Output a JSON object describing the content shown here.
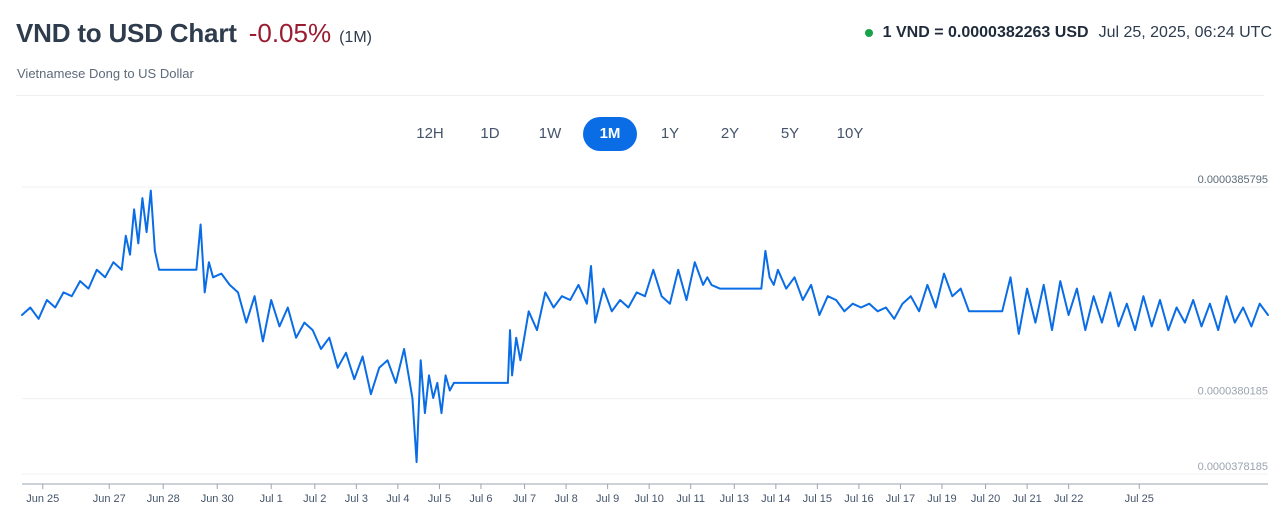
{
  "header": {
    "title": "VND to USD Chart",
    "change": "-0.05%",
    "period": "(1M)",
    "subtitle": "Vietnamese Dong to US Dollar",
    "rate": "1 VND = 0.0000382263 USD",
    "timestamp": "Jul 25, 2025, 06:24 UTC",
    "status_color": "#16a34a",
    "change_color": "#9b1c31"
  },
  "ranges": [
    {
      "label": "12H",
      "active": false
    },
    {
      "label": "1D",
      "active": false
    },
    {
      "label": "1W",
      "active": false
    },
    {
      "label": "1M",
      "active": true
    },
    {
      "label": "1Y",
      "active": false
    },
    {
      "label": "2Y",
      "active": false
    },
    {
      "label": "5Y",
      "active": false
    },
    {
      "label": "10Y",
      "active": false
    }
  ],
  "chart_data": {
    "type": "line",
    "line_color": "#0a6de6",
    "ylim": [
      3.78185e-05,
      3.85795e-05
    ],
    "yticks": [
      "0.0000385795",
      "0.0000380185",
      "0.0000378185"
    ],
    "ytick_values": [
      3.85795e-05,
      3.80185e-05,
      3.78185e-05
    ],
    "xlim": [
      0,
      30
    ],
    "xticks": [
      "Jun 25",
      "Jun 27",
      "Jun 28",
      "Jun 30",
      "Jul 1",
      "Jul 2",
      "Jul 3",
      "Jul 4",
      "Jul 5",
      "Jul 6",
      "Jul 7",
      "Jul 8",
      "Jul 9",
      "Jul 10",
      "Jul 11",
      "Jul 13",
      "Jul 14",
      "Jul 15",
      "Jul 16",
      "Jul 17",
      "Jul 19",
      "Jul 20",
      "Jul 21",
      "Jul 22",
      "Jul 25"
    ],
    "xtick_values": [
      0.5,
      2.1,
      3.4,
      4.7,
      6.0,
      7.05,
      8.05,
      9.05,
      10.05,
      11.05,
      12.1,
      13.1,
      14.1,
      15.1,
      16.1,
      17.15,
      18.15,
      19.15,
      20.15,
      21.15,
      22.15,
      23.2,
      24.2,
      25.2,
      26.9
    ],
    "series": [
      {
        "x": [
          0.0,
          0.2,
          0.4,
          0.6,
          0.8,
          1.0,
          1.2,
          1.4,
          1.6,
          1.8,
          2.0,
          2.2,
          2.4,
          2.5,
          2.6,
          2.7,
          2.8,
          2.9,
          3.0,
          3.1,
          3.2,
          3.3,
          4.2,
          4.3,
          4.4,
          4.5,
          4.6,
          4.8,
          5.0,
          5.2,
          5.4,
          5.6,
          5.8,
          6.0,
          6.2,
          6.4,
          6.6,
          6.8,
          7.0,
          7.2,
          7.4,
          7.6,
          7.8,
          8.0,
          8.2,
          8.4,
          8.6,
          8.8,
          9.0,
          9.2,
          9.4,
          9.5,
          9.6,
          9.7,
          9.8,
          9.9,
          10.0,
          10.1,
          10.2,
          10.3,
          10.4,
          10.5,
          11.7,
          11.75,
          11.8,
          11.9,
          12.0,
          12.2,
          12.4,
          12.6,
          12.8,
          13.0,
          13.2,
          13.4,
          13.6,
          13.7,
          13.8,
          14.0,
          14.2,
          14.4,
          14.6,
          14.8,
          15.0,
          15.2,
          15.4,
          15.6,
          15.8,
          16.0,
          16.2,
          16.4,
          16.5,
          16.6,
          16.8,
          17.0,
          17.2,
          17.4,
          17.6,
          17.8,
          17.9,
          18.0,
          18.1,
          18.2,
          18.4,
          18.6,
          18.8,
          19.0,
          19.2,
          19.4,
          19.6,
          19.8,
          20.0,
          20.2,
          20.4,
          20.6,
          20.8,
          21.0,
          21.2,
          21.4,
          21.6,
          21.8,
          22.0,
          22.2,
          22.4,
          22.6,
          22.8,
          23.0,
          23.2,
          23.4,
          23.6,
          23.8,
          24.0,
          24.2,
          24.4,
          24.6,
          24.8,
          25.0,
          25.2,
          25.4,
          25.6,
          25.8,
          26.0,
          26.2,
          26.4,
          26.6,
          26.8,
          27.0,
          27.2,
          27.4,
          27.6,
          27.8,
          28.0,
          28.2,
          28.4,
          28.6,
          28.8,
          29.0,
          29.2,
          29.4,
          29.6,
          29.8,
          30.0
        ],
        "y": [
          3.824e-05,
          3.826e-05,
          3.823e-05,
          3.828e-05,
          3.826e-05,
          3.83e-05,
          3.829e-05,
          3.833e-05,
          3.831e-05,
          3.836e-05,
          3.834e-05,
          3.838e-05,
          3.836e-05,
          3.845e-05,
          3.84e-05,
          3.852e-05,
          3.843e-05,
          3.855e-05,
          3.846e-05,
          3.857e-05,
          3.841e-05,
          3.836e-05,
          3.836e-05,
          3.848e-05,
          3.83e-05,
          3.838e-05,
          3.834e-05,
          3.835e-05,
          3.832e-05,
          3.83e-05,
          3.822e-05,
          3.829e-05,
          3.817e-05,
          3.828e-05,
          3.821e-05,
          3.826e-05,
          3.818e-05,
          3.822e-05,
          3.82e-05,
          3.815e-05,
          3.818e-05,
          3.81e-05,
          3.814e-05,
          3.807e-05,
          3.813e-05,
          3.803e-05,
          3.81e-05,
          3.812e-05,
          3.806e-05,
          3.815e-05,
          3.802e-05,
          3.785e-05,
          3.812e-05,
          3.798e-05,
          3.808e-05,
          3.802e-05,
          3.806e-05,
          3.798e-05,
          3.808e-05,
          3.804e-05,
          3.806e-05,
          3.806e-05,
          3.806e-05,
          3.82e-05,
          3.808e-05,
          3.818e-05,
          3.812e-05,
          3.825e-05,
          3.82e-05,
          3.83e-05,
          3.826e-05,
          3.829e-05,
          3.828e-05,
          3.832e-05,
          3.827e-05,
          3.837e-05,
          3.822e-05,
          3.831e-05,
          3.825e-05,
          3.828e-05,
          3.826e-05,
          3.83e-05,
          3.829e-05,
          3.836e-05,
          3.829e-05,
          3.827e-05,
          3.836e-05,
          3.828e-05,
          3.838e-05,
          3.832e-05,
          3.834e-05,
          3.832e-05,
          3.831e-05,
          3.831e-05,
          3.831e-05,
          3.831e-05,
          3.831e-05,
          3.831e-05,
          3.841e-05,
          3.834e-05,
          3.832e-05,
          3.836e-05,
          3.831e-05,
          3.834e-05,
          3.828e-05,
          3.832e-05,
          3.824e-05,
          3.829e-05,
          3.828e-05,
          3.825e-05,
          3.827e-05,
          3.826e-05,
          3.827e-05,
          3.825e-05,
          3.826e-05,
          3.823e-05,
          3.827e-05,
          3.829e-05,
          3.825e-05,
          3.832e-05,
          3.826e-05,
          3.835e-05,
          3.829e-05,
          3.831e-05,
          3.825e-05,
          3.825e-05,
          3.825e-05,
          3.825e-05,
          3.825e-05,
          3.834e-05,
          3.819e-05,
          3.831e-05,
          3.822e-05,
          3.832e-05,
          3.82e-05,
          3.833e-05,
          3.824e-05,
          3.831e-05,
          3.82e-05,
          3.829e-05,
          3.822e-05,
          3.83e-05,
          3.821e-05,
          3.827e-05,
          3.82e-05,
          3.829e-05,
          3.821e-05,
          3.828e-05,
          3.82e-05,
          3.826e-05,
          3.822e-05,
          3.828e-05,
          3.821e-05,
          3.827e-05,
          3.82e-05,
          3.829e-05,
          3.822e-05,
          3.826e-05,
          3.821e-05,
          3.827e-05,
          3.824e-05
        ]
      }
    ]
  }
}
